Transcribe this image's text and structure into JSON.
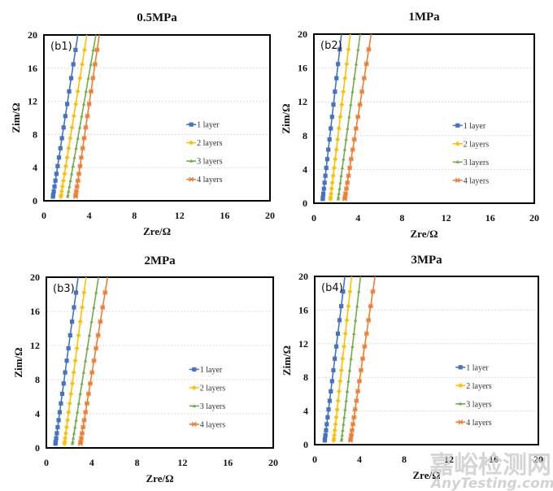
{
  "figure": {
    "watermark": {
      "cn": "嘉峪检测网",
      "en": "AnyTesting.com"
    }
  },
  "colors": {
    "1 layer": "#4472c4",
    "2 layers": "#ffc000",
    "3 layers": "#70ad47",
    "4 layers": "#ed7d31"
  },
  "chart_data": [
    {
      "type": "line",
      "panel_label": "(b1)",
      "title": "0.5MPa",
      "xlabel": "Zre/Ω",
      "ylabel": "Zim/Ω",
      "xlim": [
        0,
        20
      ],
      "ylim": [
        0,
        20
      ],
      "xticks": [
        "0",
        "4",
        "8",
        "12",
        "16",
        "20"
      ],
      "yticks": [
        "0",
        "4",
        "8",
        "12",
        "16",
        "20"
      ],
      "grid": "horizontal-dashed",
      "legend": "center-right",
      "series": [
        {
          "name": "1 layer",
          "marker": "square",
          "x": [
            0.8,
            3.0
          ],
          "y": [
            0.5,
            20
          ]
        },
        {
          "name": "2 layers",
          "marker": "diamond",
          "x": [
            1.5,
            3.8
          ],
          "y": [
            0.5,
            20
          ]
        },
        {
          "name": "3 layers",
          "marker": "triangle",
          "x": [
            2.1,
            4.6
          ],
          "y": [
            0.5,
            20
          ]
        },
        {
          "name": "4 layers",
          "marker": "star",
          "x": [
            2.8,
            4.9
          ],
          "y": [
            0.5,
            20
          ]
        }
      ]
    },
    {
      "type": "line",
      "panel_label": "(b2)",
      "title": "1MPa",
      "xlabel": "Zre/Ω",
      "ylabel": "Zim/Ω",
      "xlim": [
        0,
        20
      ],
      "ylim": [
        0,
        20
      ],
      "xticks": [
        "0",
        "4",
        "8",
        "12",
        "16",
        "20"
      ],
      "yticks": [
        "0",
        "4",
        "8",
        "12",
        "16",
        "20"
      ],
      "grid": "horizontal-dashed",
      "legend": "center-right",
      "series": [
        {
          "name": "1 layer",
          "marker": "square",
          "x": [
            0.8,
            2.5
          ],
          "y": [
            0.5,
            20
          ]
        },
        {
          "name": "2 layers",
          "marker": "diamond",
          "x": [
            1.5,
            3.3
          ],
          "y": [
            0.5,
            20
          ]
        },
        {
          "name": "3 layers",
          "marker": "triangle",
          "x": [
            2.2,
            4.2
          ],
          "y": [
            0.5,
            20
          ]
        },
        {
          "name": "4 layers",
          "marker": "star",
          "x": [
            2.8,
            5.2
          ],
          "y": [
            0.5,
            20
          ]
        }
      ]
    },
    {
      "type": "line",
      "panel_label": "(b3)",
      "title": "2MPa",
      "xlabel": "Zre/Ω",
      "ylabel": "Zim/Ω",
      "xlim": [
        0,
        20
      ],
      "ylim": [
        0,
        20
      ],
      "xticks": [
        "0",
        "4",
        "8",
        "12",
        "16",
        "20"
      ],
      "yticks": [
        "0",
        "4",
        "8",
        "12",
        "16",
        "20"
      ],
      "grid": "horizontal-dashed",
      "legend": "center-right",
      "series": [
        {
          "name": "1 layer",
          "marker": "square",
          "x": [
            0.8,
            2.8
          ],
          "y": [
            0.5,
            20
          ]
        },
        {
          "name": "2 layers",
          "marker": "diamond",
          "x": [
            1.6,
            3.5
          ],
          "y": [
            0.5,
            20
          ]
        },
        {
          "name": "3 layers",
          "marker": "triangle",
          "x": [
            2.3,
            4.6
          ],
          "y": [
            0.5,
            20
          ]
        },
        {
          "name": "4 layers",
          "marker": "star",
          "x": [
            3.0,
            5.4
          ],
          "y": [
            0.5,
            20
          ]
        }
      ]
    },
    {
      "type": "line",
      "panel_label": "(b4)",
      "title": "3MPa",
      "xlabel": "Zre/Ω",
      "ylabel": "Zim/Ω",
      "xlim": [
        0,
        20
      ],
      "ylim": [
        0,
        20
      ],
      "xticks": [
        "0",
        "4",
        "8",
        "12",
        "16",
        "20"
      ],
      "yticks": [
        "0",
        "4",
        "8",
        "12",
        "16",
        "20"
      ],
      "grid": "horizontal-dashed",
      "legend": "center-right",
      "series": [
        {
          "name": "1 layer",
          "marker": "square",
          "x": [
            0.9,
            2.7
          ],
          "y": [
            0.5,
            20
          ]
        },
        {
          "name": "2 layers",
          "marker": "diamond",
          "x": [
            1.7,
            3.3
          ],
          "y": [
            0.5,
            20
          ]
        },
        {
          "name": "3 layers",
          "marker": "triangle",
          "x": [
            2.4,
            4.1
          ],
          "y": [
            0.5,
            20
          ]
        },
        {
          "name": "4 layers",
          "marker": "star",
          "x": [
            3.2,
            5.4
          ],
          "y": [
            0.5,
            20
          ]
        }
      ]
    }
  ]
}
